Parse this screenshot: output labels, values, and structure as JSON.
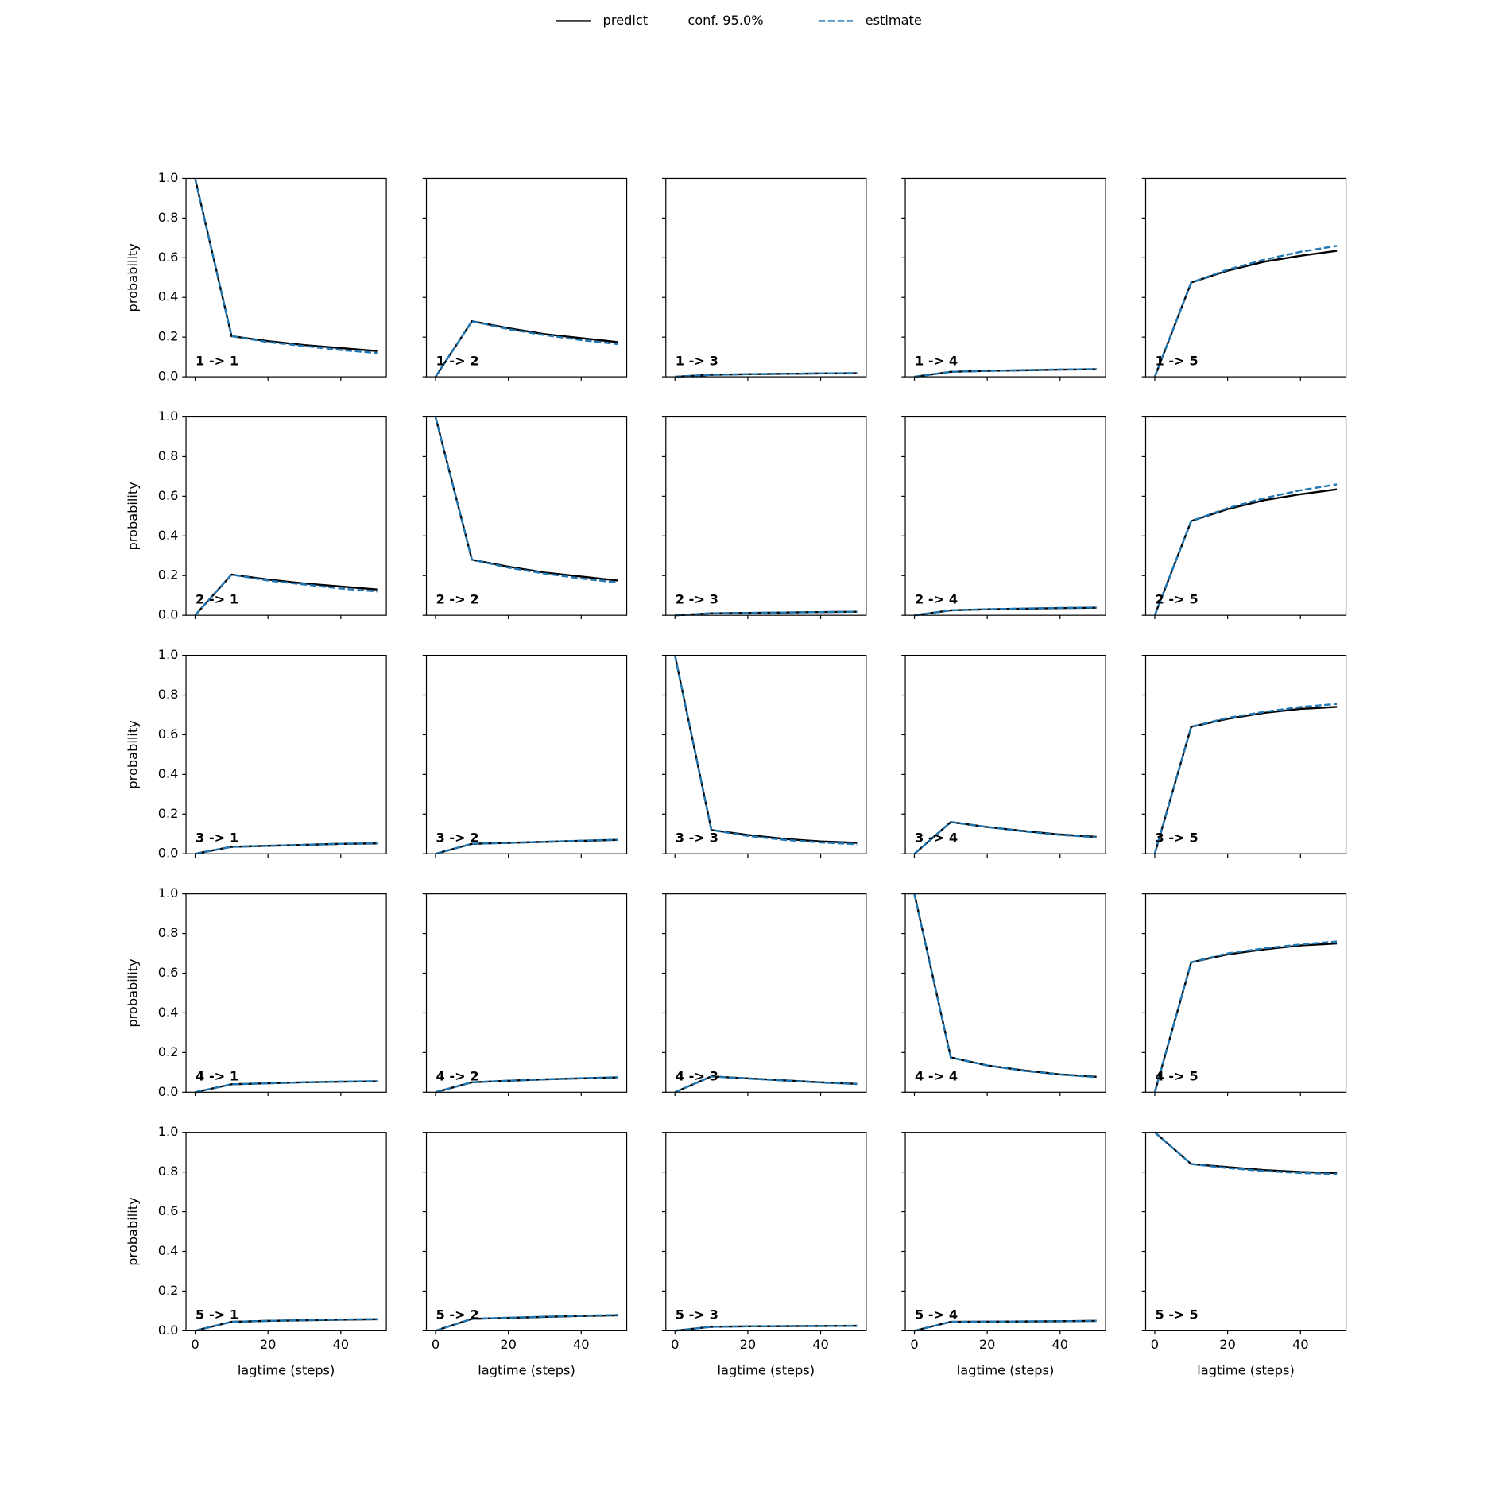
{
  "chart_data": {
    "type": "line",
    "x": [
      0,
      10,
      20,
      30,
      40,
      50
    ],
    "xlim": [
      -2.5,
      52.5
    ],
    "xticks": [
      0,
      20,
      40
    ],
    "ylim": [
      0,
      1
    ],
    "yticks": [
      {
        "value": 0,
        "label": "0.0"
      },
      {
        "value": 0.2,
        "label": "0.2"
      },
      {
        "value": 0.4,
        "label": "0.4"
      },
      {
        "value": 0.6,
        "label": "0.6"
      },
      {
        "value": 0.8,
        "label": "0.8"
      },
      {
        "value": 1,
        "label": "1.0"
      }
    ],
    "xlabel": "lagtime (steps)",
    "ylabel": "probability",
    "legend_loc": "upper center",
    "series": [
      {
        "name": "predict",
        "color": "#000000",
        "linestyle": "solid"
      },
      {
        "name": "conf. 95.0%"
      },
      {
        "name": "estimate",
        "color": "#1f77b4",
        "linestyle": "dashed"
      }
    ],
    "panels": [
      {
        "label": "1 -> 1",
        "predict": [
          1,
          0.205,
          0.18,
          0.16,
          0.145,
          0.13
        ],
        "estimate": [
          1,
          0.205,
          0.175,
          0.155,
          0.135,
          0.12
        ]
      },
      {
        "label": "1 -> 2",
        "predict": [
          0,
          0.28,
          0.245,
          0.215,
          0.195,
          0.175
        ],
        "estimate": [
          0,
          0.28,
          0.24,
          0.21,
          0.185,
          0.165
        ]
      },
      {
        "label": "1 -> 3",
        "predict": [
          0,
          0.01,
          0.013,
          0.015,
          0.017,
          0.018
        ],
        "estimate": [
          0,
          0.01,
          0.013,
          0.015,
          0.017,
          0.019
        ]
      },
      {
        "label": "1 -> 4",
        "predict": [
          0,
          0.025,
          0.03,
          0.033,
          0.036,
          0.038
        ],
        "estimate": [
          0,
          0.025,
          0.03,
          0.034,
          0.037,
          0.039
        ]
      },
      {
        "label": "1 -> 5",
        "predict": [
          0,
          0.475,
          0.535,
          0.58,
          0.61,
          0.635
        ],
        "estimate": [
          0,
          0.475,
          0.54,
          0.59,
          0.63,
          0.66
        ]
      },
      {
        "label": "2 -> 1",
        "predict": [
          0,
          0.205,
          0.18,
          0.16,
          0.145,
          0.13
        ],
        "estimate": [
          0,
          0.205,
          0.175,
          0.155,
          0.135,
          0.12
        ]
      },
      {
        "label": "2 -> 2",
        "predict": [
          1,
          0.28,
          0.245,
          0.215,
          0.195,
          0.175
        ],
        "estimate": [
          1,
          0.28,
          0.24,
          0.21,
          0.185,
          0.165
        ]
      },
      {
        "label": "2 -> 3",
        "predict": [
          0,
          0.01,
          0.012,
          0.014,
          0.016,
          0.018
        ],
        "estimate": [
          0,
          0.01,
          0.012,
          0.014,
          0.016,
          0.018
        ]
      },
      {
        "label": "2 -> 4",
        "predict": [
          0,
          0.025,
          0.03,
          0.033,
          0.036,
          0.038
        ],
        "estimate": [
          0,
          0.025,
          0.03,
          0.034,
          0.037,
          0.039
        ]
      },
      {
        "label": "2 -> 5",
        "predict": [
          0,
          0.475,
          0.535,
          0.58,
          0.61,
          0.635
        ],
        "estimate": [
          0,
          0.475,
          0.54,
          0.59,
          0.63,
          0.66
        ]
      },
      {
        "label": "3 -> 1",
        "predict": [
          0,
          0.035,
          0.04,
          0.045,
          0.05,
          0.052
        ],
        "estimate": [
          0,
          0.035,
          0.04,
          0.045,
          0.05,
          0.053
        ]
      },
      {
        "label": "3 -> 2",
        "predict": [
          0,
          0.05,
          0.055,
          0.06,
          0.065,
          0.07
        ],
        "estimate": [
          0,
          0.05,
          0.055,
          0.06,
          0.066,
          0.071
        ]
      },
      {
        "label": "3 -> 3",
        "predict": [
          1,
          0.12,
          0.095,
          0.075,
          0.062,
          0.055
        ],
        "estimate": [
          1,
          0.12,
          0.09,
          0.07,
          0.057,
          0.048
        ]
      },
      {
        "label": "3 -> 4",
        "predict": [
          0,
          0.16,
          0.135,
          0.115,
          0.097,
          0.085
        ],
        "estimate": [
          0,
          0.16,
          0.135,
          0.113,
          0.095,
          0.083
        ]
      },
      {
        "label": "3 -> 5",
        "predict": [
          0,
          0.64,
          0.68,
          0.71,
          0.73,
          0.74
        ],
        "estimate": [
          0,
          0.64,
          0.685,
          0.715,
          0.74,
          0.755
        ]
      },
      {
        "label": "4 -> 1",
        "predict": [
          0,
          0.04,
          0.045,
          0.05,
          0.053,
          0.055
        ],
        "estimate": [
          0,
          0.04,
          0.045,
          0.05,
          0.054,
          0.056
        ]
      },
      {
        "label": "4 -> 2",
        "predict": [
          0,
          0.05,
          0.058,
          0.065,
          0.07,
          0.075
        ],
        "estimate": [
          0,
          0.05,
          0.058,
          0.065,
          0.071,
          0.076
        ]
      },
      {
        "label": "4 -> 3",
        "predict": [
          0,
          0.08,
          0.07,
          0.06,
          0.05,
          0.042
        ],
        "estimate": [
          0,
          0.08,
          0.069,
          0.059,
          0.049,
          0.041
        ]
      },
      {
        "label": "4 -> 4",
        "predict": [
          1,
          0.175,
          0.135,
          0.11,
          0.09,
          0.078
        ],
        "estimate": [
          1,
          0.175,
          0.135,
          0.108,
          0.089,
          0.076
        ]
      },
      {
        "label": "4 -> 5",
        "predict": [
          0,
          0.655,
          0.695,
          0.72,
          0.74,
          0.75
        ],
        "estimate": [
          0,
          0.655,
          0.7,
          0.725,
          0.745,
          0.76
        ]
      },
      {
        "label": "5 -> 1",
        "predict": [
          0,
          0.045,
          0.05,
          0.053,
          0.056,
          0.058
        ],
        "estimate": [
          0,
          0.045,
          0.05,
          0.054,
          0.057,
          0.059
        ]
      },
      {
        "label": "5 -> 2",
        "predict": [
          0,
          0.06,
          0.065,
          0.07,
          0.075,
          0.078
        ],
        "estimate": [
          0,
          0.06,
          0.066,
          0.071,
          0.076,
          0.08
        ]
      },
      {
        "label": "5 -> 3",
        "predict": [
          0,
          0.02,
          0.022,
          0.023,
          0.024,
          0.025
        ],
        "estimate": [
          0,
          0.02,
          0.022,
          0.023,
          0.024,
          0.025
        ]
      },
      {
        "label": "5 -> 4",
        "predict": [
          0,
          0.045,
          0.046,
          0.047,
          0.048,
          0.05
        ],
        "estimate": [
          0,
          0.045,
          0.046,
          0.047,
          0.048,
          0.05
        ]
      },
      {
        "label": "5 -> 5",
        "predict": [
          1,
          0.84,
          0.825,
          0.81,
          0.8,
          0.795
        ],
        "estimate": [
          1,
          0.84,
          0.82,
          0.805,
          0.795,
          0.79
        ]
      }
    ]
  }
}
